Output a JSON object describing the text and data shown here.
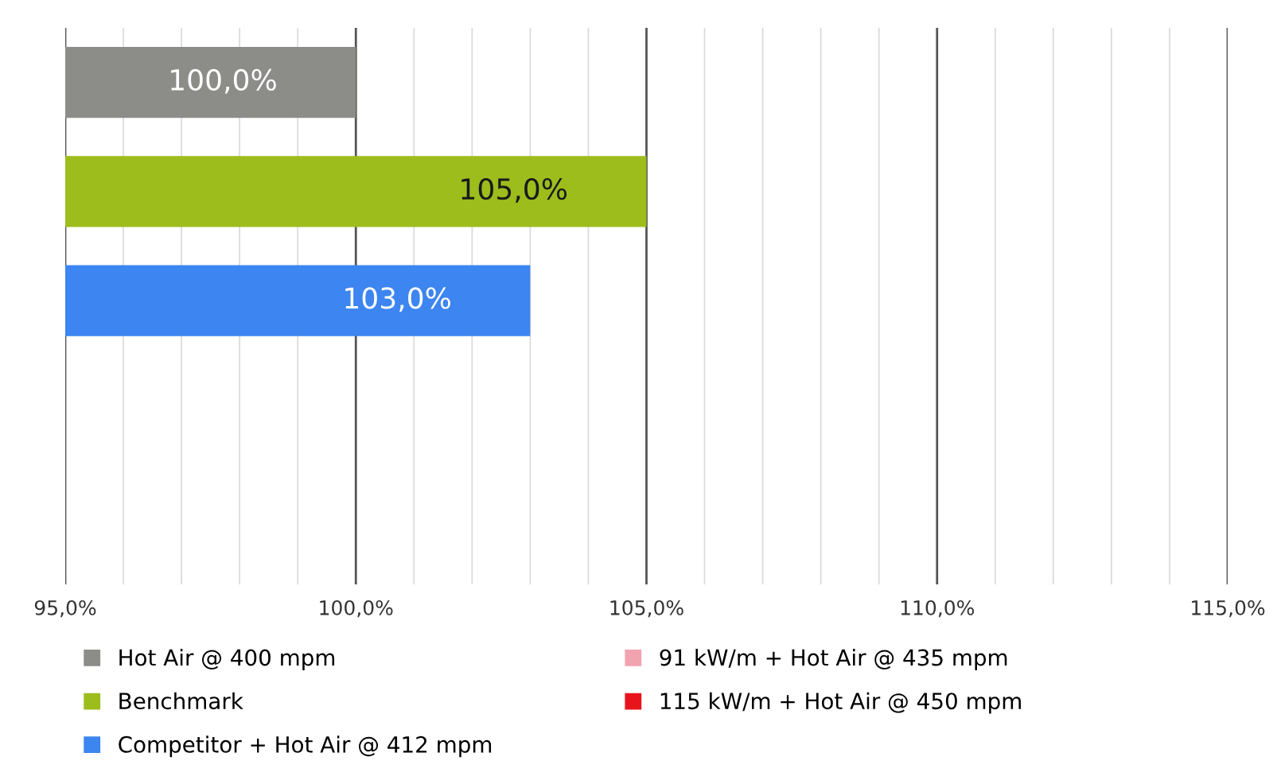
{
  "chart_data": {
    "type": "bar",
    "orientation": "horizontal",
    "categories": [
      null,
      null,
      null,
      null,
      null
    ],
    "series": [
      {
        "name": "Hot Air @ 400 mpm",
        "color": "#8c8d89",
        "values": [
          100.0,
          null,
          null,
          null,
          null
        ],
        "value_labels": [
          "100,0%",
          null,
          null,
          null,
          null
        ]
      },
      {
        "name": "Benchmark",
        "color": "#9dbd1d",
        "values": [
          null,
          105.0,
          null,
          null,
          null
        ],
        "value_labels": [
          null,
          "105,0%",
          null,
          null,
          null
        ]
      },
      {
        "name": "Competitor + Hot Air @ 412 mpm",
        "color": "#3d85f0",
        "values": [
          null,
          null,
          103.0,
          null,
          null
        ],
        "value_labels": [
          null,
          null,
          "103,0%",
          null,
          null
        ]
      },
      {
        "name": "91 kW/m + Hot Air @ 435 mpm",
        "color": "#f2a3b0",
        "values": [
          null,
          null,
          null,
          null,
          null
        ]
      },
      {
        "name": "115 kW/m + Hot Air @ 450 mpm",
        "color": "#e8141c",
        "values": [
          null,
          null,
          null,
          null,
          null
        ]
      }
    ],
    "xlim": [
      95,
      115
    ],
    "xticks": [
      {
        "value": 95,
        "label": "95,0%"
      },
      {
        "value": 96,
        "label": null
      },
      {
        "value": 97,
        "label": null
      },
      {
        "value": 98,
        "label": null
      },
      {
        "value": 99,
        "label": null
      },
      {
        "value": 100,
        "label": "100,0%"
      },
      {
        "value": 101,
        "label": null
      },
      {
        "value": 102,
        "label": null
      },
      {
        "value": 103,
        "label": null
      },
      {
        "value": 104,
        "label": null
      },
      {
        "value": 105,
        "label": "105,0%"
      },
      {
        "value": 106,
        "label": null
      },
      {
        "value": 107,
        "label": null
      },
      {
        "value": 108,
        "label": null
      },
      {
        "value": 109,
        "label": null
      },
      {
        "value": 110,
        "label": "110,0%"
      },
      {
        "value": 111,
        "label": null
      },
      {
        "value": 112,
        "label": null
      },
      {
        "value": 113,
        "label": null
      },
      {
        "value": 114,
        "label": null
      },
      {
        "value": 115,
        "label": "115,0%"
      }
    ],
    "grid": "x",
    "legend": "bottom",
    "tick_labels": "x"
  }
}
